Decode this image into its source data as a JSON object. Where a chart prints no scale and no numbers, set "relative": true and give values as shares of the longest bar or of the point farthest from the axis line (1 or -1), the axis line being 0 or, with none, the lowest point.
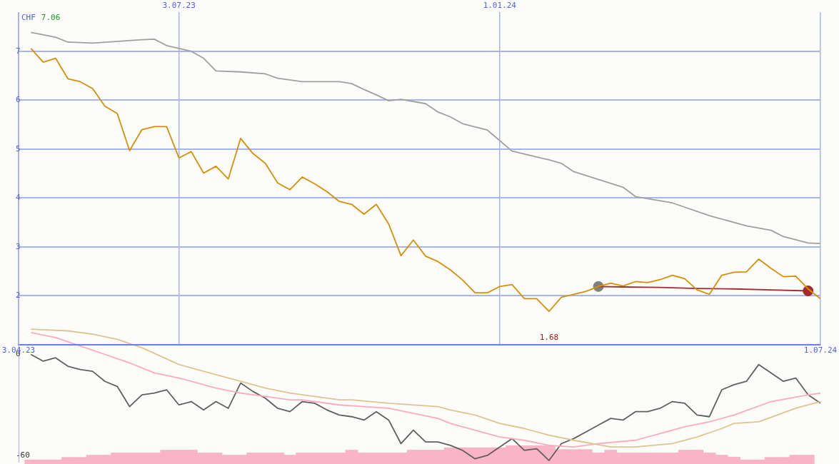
{
  "chart_data": [
    {
      "type": "line",
      "ylabel": "CHF",
      "annotations": [
        "7.06",
        {
          "text": "1.68",
          "x": "2024-01-29",
          "y": 1.68
        }
      ],
      "x": [
        "2023-04-10",
        "2023-04-17",
        "2023-04-24",
        "2023-05-01",
        "2023-05-08",
        "2023-05-15",
        "2023-05-22",
        "2023-05-29",
        "2023-06-05",
        "2023-06-12",
        "2023-06-19",
        "2023-06-26",
        "2023-07-03",
        "2023-07-10",
        "2023-07-17",
        "2023-07-24",
        "2023-07-31",
        "2023-08-07",
        "2023-08-14",
        "2023-08-21",
        "2023-08-28",
        "2023-09-04",
        "2023-09-11",
        "2023-09-18",
        "2023-09-25",
        "2023-10-02",
        "2023-10-09",
        "2023-10-16",
        "2023-10-23",
        "2023-10-30",
        "2023-11-06",
        "2023-11-13",
        "2023-11-20",
        "2023-11-27",
        "2023-12-04",
        "2023-12-11",
        "2023-12-18",
        "2023-12-25",
        "2024-01-01",
        "2024-01-08",
        "2024-01-15",
        "2024-01-22",
        "2024-01-29",
        "2024-02-05",
        "2024-02-12",
        "2024-02-19",
        "2024-02-26",
        "2024-03-04",
        "2024-03-11",
        "2024-03-18",
        "2024-03-25",
        "2024-04-01",
        "2024-04-08",
        "2024-04-15",
        "2024-04-22",
        "2024-04-29",
        "2024-05-06",
        "2024-05-13",
        "2024-05-20",
        "2024-05-27",
        "2024-06-03",
        "2024-06-10",
        "2024-06-17",
        "2024-06-24",
        "2024-07-01"
      ],
      "xlim": [
        "2023-04-03",
        "2024-07-01"
      ],
      "xticks": [
        {
          "value": "2023-04-03",
          "label": "3.04.23"
        },
        {
          "value": "2024-07-01",
          "label": "1.07.24"
        }
      ],
      "x2lim": [
        "2023-04-03",
        "2024-07-01"
      ],
      "x2ticks": [
        {
          "value": "2023-07-03",
          "label": "3.07.23"
        },
        {
          "value": "2024-01-01",
          "label": "1.01.24"
        }
      ],
      "ylim": [
        1,
        7.8
      ],
      "yticks": [
        2,
        3,
        4,
        5,
        6,
        7
      ],
      "grid": true,
      "series": [
        {
          "color": "#a0a0a0",
          "x": [
            "2023-04-10",
            "2023-04-24",
            "2023-05-01",
            "2023-05-15",
            "2023-06-12",
            "2023-06-19",
            "2023-06-26",
            "2023-07-10",
            "2023-07-17",
            "2023-07-24",
            "2023-08-07",
            "2023-08-21",
            "2023-08-28",
            "2023-09-11",
            "2023-10-02",
            "2023-10-09",
            "2023-10-16",
            "2023-10-23",
            "2023-10-30",
            "2023-11-06",
            "2023-11-20",
            "2023-11-27",
            "2023-12-04",
            "2023-12-11",
            "2023-12-25",
            "2024-01-08",
            "2024-01-22",
            "2024-01-29",
            "2024-02-05",
            "2024-02-12",
            "2024-02-26",
            "2024-03-11",
            "2024-03-18",
            "2024-04-08",
            "2024-04-29",
            "2024-05-20",
            "2024-06-03",
            "2024-06-10",
            "2024-06-24",
            "2024-07-01"
          ],
          "values": [
            7.39,
            7.29,
            7.19,
            7.17,
            7.24,
            7.25,
            7.12,
            7.0,
            6.86,
            6.6,
            6.58,
            6.54,
            6.45,
            6.38,
            6.38,
            6.34,
            6.22,
            6.11,
            5.99,
            6.02,
            5.93,
            5.76,
            5.66,
            5.52,
            5.39,
            4.96,
            4.84,
            4.78,
            4.71,
            4.54,
            4.38,
            4.22,
            4.03,
            3.9,
            3.64,
            3.43,
            3.34,
            3.21,
            3.08,
            3.07
          ]
        },
        {
          "color": "#d98e04",
          "values": [
            7.06,
            6.78,
            6.86,
            6.44,
            6.38,
            6.24,
            5.88,
            5.73,
            4.97,
            5.4,
            5.46,
            5.46,
            4.82,
            4.95,
            4.51,
            4.65,
            4.39,
            5.22,
            4.91,
            4.71,
            4.31,
            4.17,
            4.43,
            4.29,
            4.13,
            3.93,
            3.87,
            3.67,
            3.87,
            3.47,
            2.82,
            3.14,
            2.81,
            2.7,
            2.53,
            2.32,
            2.06,
            2.06,
            2.19,
            2.23,
            1.94,
            1.94,
            1.68,
            1.97,
            2.03,
            2.09,
            2.19,
            2.26,
            2.2,
            2.29,
            2.27,
            2.33,
            2.42,
            2.35,
            2.12,
            2.03,
            2.42,
            2.48,
            2.49,
            2.75,
            2.56,
            2.39,
            2.4,
            2.14,
            1.94
          ]
        },
        {
          "color": "#a52a2a",
          "x": [
            "2024-02-26",
            "2024-03-11",
            "2024-04-01",
            "2024-04-22",
            "2024-05-13",
            "2024-06-03",
            "2024-06-24"
          ],
          "values": [
            2.19,
            2.18,
            2.17,
            2.15,
            2.14,
            2.12,
            2.1
          ]
        },
        {
          "type": "scatter",
          "marker": "circle",
          "color": "#808080",
          "x": [
            "2024-02-26"
          ],
          "values": [
            2.19
          ]
        },
        {
          "type": "scatter",
          "marker": "circle",
          "color": "#a52a2a",
          "x": [
            "2024-06-24"
          ],
          "values": [
            2.1
          ]
        }
      ]
    },
    {
      "type": "line",
      "x": [
        "2023-04-10",
        "2023-04-17",
        "2023-04-24",
        "2023-05-01",
        "2023-05-08",
        "2023-05-15",
        "2023-05-22",
        "2023-05-29",
        "2023-06-05",
        "2023-06-12",
        "2023-06-19",
        "2023-06-26",
        "2023-07-03",
        "2023-07-10",
        "2023-07-17",
        "2023-07-24",
        "2023-07-31",
        "2023-08-07",
        "2023-08-14",
        "2023-08-21",
        "2023-08-28",
        "2023-09-04",
        "2023-09-11",
        "2023-09-18",
        "2023-09-25",
        "2023-10-02",
        "2023-10-09",
        "2023-10-16",
        "2023-10-23",
        "2023-10-30",
        "2023-11-06",
        "2023-11-13",
        "2023-11-20",
        "2023-11-27",
        "2023-12-04",
        "2023-12-11",
        "2023-12-18",
        "2023-12-25",
        "2024-01-01",
        "2024-01-08",
        "2024-01-15",
        "2024-01-22",
        "2024-01-29",
        "2024-02-05",
        "2024-02-12",
        "2024-02-19",
        "2024-02-26",
        "2024-03-04",
        "2024-03-11",
        "2024-03-18",
        "2024-03-25",
        "2024-04-01",
        "2024-04-08",
        "2024-04-15",
        "2024-04-22",
        "2024-04-29",
        "2024-05-06",
        "2024-05-13",
        "2024-05-20",
        "2024-05-27",
        "2024-06-03",
        "2024-06-10",
        "2024-06-17",
        "2024-06-24",
        "2024-07-01"
      ],
      "xlim": [
        "2023-04-03",
        "2024-07-01"
      ],
      "ylim": [
        -64,
        16.5
      ],
      "yticks": [
        0,
        -60
      ],
      "tick_labels": "y",
      "series": [
        {
          "color": "#e0c490",
          "x": [
            "2023-04-10",
            "2023-05-01",
            "2023-05-15",
            "2023-05-29",
            "2023-06-12",
            "2023-07-03",
            "2023-07-24",
            "2023-08-07",
            "2023-08-21",
            "2023-09-04",
            "2023-09-18",
            "2023-10-02",
            "2023-10-09",
            "2023-10-30",
            "2023-11-27",
            "2023-12-04",
            "2023-12-18",
            "2024-01-01",
            "2024-01-15",
            "2024-01-29",
            "2024-02-12",
            "2024-03-04",
            "2024-03-18",
            "2024-04-08",
            "2024-04-22",
            "2024-05-06",
            "2024-05-13",
            "2024-05-27",
            "2024-06-17",
            "2024-07-01"
          ],
          "values": [
            15,
            14,
            12,
            9,
            4,
            -6,
            -12,
            -16,
            -20,
            -23,
            -25,
            -27,
            -27,
            -29,
            -31,
            -33,
            -36,
            -41,
            -44,
            -48,
            -51,
            -55,
            -55,
            -53,
            -49,
            -44,
            -41,
            -40,
            -32,
            -28
          ]
        },
        {
          "color": "#ffa8c4",
          "x": [
            "2023-04-10",
            "2023-04-24",
            "2023-05-08",
            "2023-05-22",
            "2023-06-05",
            "2023-06-19",
            "2023-07-03",
            "2023-07-24",
            "2023-08-07",
            "2023-08-21",
            "2023-09-04",
            "2023-09-11",
            "2023-10-02",
            "2023-10-16",
            "2023-10-30",
            "2023-11-27",
            "2023-12-04",
            "2023-12-18",
            "2024-01-01",
            "2024-01-15",
            "2024-01-29",
            "2024-02-12",
            "2024-02-26",
            "2024-03-18",
            "2024-04-01",
            "2024-04-15",
            "2024-04-29",
            "2024-05-13",
            "2024-06-03",
            "2024-06-24",
            "2024-07-01"
          ],
          "values": [
            13,
            10,
            5,
            0,
            -5,
            -11,
            -14,
            -20,
            -23,
            -25,
            -27,
            -27,
            -30,
            -31,
            -32,
            -38,
            -41,
            -45,
            -49,
            -51,
            -54,
            -55,
            -53,
            -51,
            -47,
            -43,
            -40,
            -36,
            -28,
            -24,
            -23
          ]
        },
        {
          "color": "#606060",
          "values": [
            0,
            -4,
            -2,
            -7,
            -9,
            -10,
            -16,
            -19,
            -31,
            -24,
            -23,
            -21,
            -30,
            -28,
            -33,
            -28,
            -32,
            -17,
            -22,
            -26,
            -32,
            -34,
            -28,
            -29,
            -33,
            -36,
            -37,
            -39,
            -34,
            -39,
            -53,
            -45,
            -52,
            -52,
            -54,
            -57,
            -62,
            -60,
            -55,
            -50,
            -57,
            -56,
            -63,
            -53,
            -50,
            -46,
            -42,
            -38,
            -39,
            -34,
            -34,
            -32,
            -28,
            -29,
            -36,
            -37,
            -21,
            -18,
            -16,
            -6,
            -11,
            -16,
            -14,
            -24,
            -29
          ]
        }
      ]
    },
    {
      "type": "bar",
      "relative": true,
      "tick_labels": false,
      "color": "#f9b4c8",
      "x": [
        "2023-04-10",
        "2023-04-17",
        "2023-04-24",
        "2023-05-01",
        "2023-05-08",
        "2023-05-15",
        "2023-05-22",
        "2023-05-29",
        "2023-06-05",
        "2023-06-12",
        "2023-06-19",
        "2023-06-26",
        "2023-07-03",
        "2023-07-10",
        "2023-07-17",
        "2023-07-24",
        "2023-07-31",
        "2023-08-07",
        "2023-08-14",
        "2023-08-21",
        "2023-08-28",
        "2023-09-04",
        "2023-09-11",
        "2023-09-18",
        "2023-09-25",
        "2023-10-02",
        "2023-10-09",
        "2023-10-16",
        "2023-10-23",
        "2023-10-30",
        "2023-11-06",
        "2023-11-13",
        "2023-11-20",
        "2023-11-27",
        "2023-12-04",
        "2023-12-11",
        "2023-12-18",
        "2023-12-25",
        "2024-01-01",
        "2024-01-08",
        "2024-01-15",
        "2024-01-22",
        "2024-01-29",
        "2024-02-05",
        "2024-02-12",
        "2024-02-19",
        "2024-02-26",
        "2024-03-04",
        "2024-03-11",
        "2024-03-18",
        "2024-03-25",
        "2024-04-01",
        "2024-04-08",
        "2024-04-15",
        "2024-04-22",
        "2024-04-29",
        "2024-05-06",
        "2024-05-13",
        "2024-05-20",
        "2024-05-27",
        "2024-06-03",
        "2024-06-10",
        "2024-06-17",
        "2024-06-24"
      ],
      "xlim": [
        "2023-04-03",
        "2024-07-01"
      ],
      "values": [
        0.22,
        0.22,
        0.22,
        0.36,
        0.36,
        0.48,
        0.48,
        0.6,
        0.6,
        0.6,
        0.6,
        0.75,
        0.75,
        0.75,
        0.6,
        0.6,
        0.48,
        0.48,
        0.6,
        0.6,
        0.6,
        0.48,
        0.6,
        0.6,
        0.6,
        0.6,
        0.75,
        0.6,
        0.6,
        0.6,
        0.6,
        0.75,
        0.75,
        0.75,
        0.88,
        0.88,
        0.88,
        0.88,
        0.88,
        1,
        1,
        1,
        1,
        0.78,
        0.78,
        0.78,
        0.6,
        0.75,
        0.6,
        0.6,
        0.6,
        0.6,
        0.6,
        0.75,
        0.75,
        0.6,
        0.48,
        0.37,
        0.22,
        0.22,
        0.36,
        0.36,
        0.48,
        0.48
      ]
    }
  ]
}
